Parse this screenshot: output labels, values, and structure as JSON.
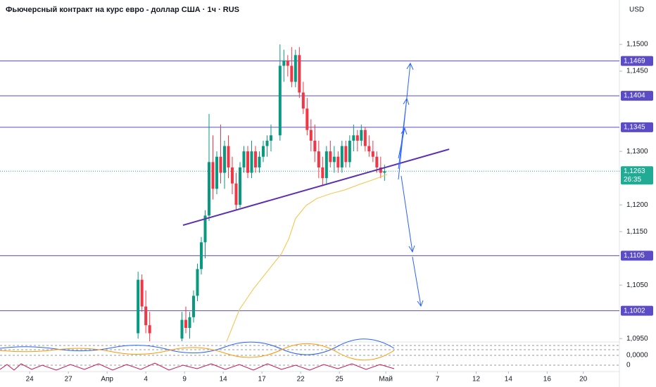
{
  "chart_data": {
    "type": "candlestick",
    "title": "Фьючерсный контракт на курс евро - доллар США · 1ч · RUS",
    "currency": "USD",
    "xlim": [
      -2.3,
      45.7
    ],
    "ylim": [
      1.0945,
      1.1583
    ],
    "xticks": [
      {
        "value": 0,
        "label": "24"
      },
      {
        "value": 3,
        "label": "27"
      },
      {
        "value": 6,
        "label": "Апр"
      },
      {
        "value": 9,
        "label": "4"
      },
      {
        "value": 12,
        "label": "9"
      },
      {
        "value": 15,
        "label": "14"
      },
      {
        "value": 18,
        "label": "17"
      },
      {
        "value": 21,
        "label": "22"
      },
      {
        "value": 24,
        "label": "25"
      },
      {
        "value": 27.6,
        "label": "Май"
      },
      {
        "value": 31.6,
        "label": "7"
      },
      {
        "value": 34.6,
        "label": "12"
      },
      {
        "value": 37.1,
        "label": "14"
      },
      {
        "value": 40.1,
        "label": "16"
      },
      {
        "value": 42.9,
        "label": "20"
      }
    ],
    "yticks": [
      {
        "value": 1.15,
        "label": "1,1500"
      },
      {
        "value": 1.145,
        "label": "1,1450"
      },
      {
        "value": 1.13,
        "label": "1,1300"
      },
      {
        "value": 1.12,
        "label": "1,1200"
      },
      {
        "value": 1.115,
        "label": "1,1150"
      },
      {
        "value": 1.105,
        "label": "1,1050"
      },
      {
        "value": 1.095,
        "label": "1,0950"
      }
    ],
    "up_color": "#089981",
    "down_color": "#f23645",
    "x": [
      8.4,
      8.7,
      9.0,
      9.3,
      11.8,
      12.1,
      12.4,
      12.7,
      13.0,
      13.3,
      13.6,
      13.9,
      14.2,
      14.5,
      14.8,
      15.1,
      15.4,
      15.7,
      16.0,
      16.3,
      16.6,
      16.9,
      17.2,
      17.5,
      17.8,
      18.1,
      18.4,
      18.7,
      19.4,
      19.7,
      20.0,
      20.3,
      20.6,
      20.9,
      21.2,
      21.5,
      21.8,
      22.1,
      22.4,
      22.7,
      23.0,
      23.3,
      23.6,
      23.9,
      24.2,
      24.5,
      24.8,
      25.1,
      25.4,
      25.7,
      26.0,
      26.3,
      26.6,
      26.9,
      27.2,
      27.5
    ],
    "open": [
      1.096,
      1.106,
      1.101,
      1.0975,
      1.095,
      1.0985,
      1.097,
      1.099,
      1.103,
      1.108,
      1.113,
      1.118,
      1.128,
      1.123,
      1.129,
      1.126,
      1.131,
      1.127,
      1.124,
      1.12,
      1.127,
      1.13,
      1.126,
      1.13,
      1.127,
      1.129,
      1.131,
      1.132,
      1.133,
      1.146,
      1.147,
      1.146,
      1.143,
      1.148,
      1.141,
      1.138,
      1.134,
      1.132,
      1.13,
      1.127,
      1.125,
      1.13,
      1.128,
      1.129,
      1.127,
      1.131,
      1.128,
      1.132,
      1.133,
      1.132,
      1.134,
      1.131,
      1.13,
      1.129,
      1.127,
      1.126
    ],
    "high": [
      1.1075,
      1.107,
      1.104,
      1.1,
      1.1,
      1.101,
      1.1,
      1.104,
      1.109,
      1.114,
      1.119,
      1.137,
      1.133,
      1.13,
      1.135,
      1.132,
      1.133,
      1.129,
      1.126,
      1.128,
      1.131,
      1.131,
      1.132,
      1.131,
      1.13,
      1.132,
      1.133,
      1.135,
      1.15,
      1.149,
      1.148,
      1.1495,
      1.149,
      1.1495,
      1.143,
      1.14,
      1.136,
      1.135,
      1.132,
      1.129,
      1.131,
      1.132,
      1.131,
      1.13,
      1.132,
      1.132,
      1.133,
      1.135,
      1.134,
      1.135,
      1.1345,
      1.133,
      1.132,
      1.13,
      1.129,
      1.1275
    ],
    "low": [
      1.095,
      1.1,
      1.096,
      1.0945,
      1.0945,
      1.096,
      1.095,
      1.098,
      1.102,
      1.107,
      1.11,
      1.117,
      1.121,
      1.122,
      1.124,
      1.123,
      1.125,
      1.122,
      1.119,
      1.1195,
      1.126,
      1.125,
      1.125,
      1.126,
      1.126,
      1.128,
      1.129,
      1.13,
      1.132,
      1.143,
      1.144,
      1.142,
      1.142,
      1.14,
      1.137,
      1.133,
      1.13,
      1.128,
      1.125,
      1.1235,
      1.124,
      1.127,
      1.126,
      1.126,
      1.126,
      1.127,
      1.127,
      1.13,
      1.13,
      1.131,
      1.13,
      1.129,
      1.128,
      1.126,
      1.125,
      1.1245
    ],
    "close": [
      1.106,
      1.101,
      1.0975,
      1.096,
      1.0985,
      1.097,
      1.099,
      1.103,
      1.108,
      1.113,
      1.118,
      1.128,
      1.123,
      1.129,
      1.126,
      1.131,
      1.127,
      1.124,
      1.12,
      1.127,
      1.13,
      1.126,
      1.13,
      1.127,
      1.129,
      1.131,
      1.132,
      1.133,
      1.146,
      1.147,
      1.146,
      1.143,
      1.148,
      1.141,
      1.138,
      1.134,
      1.132,
      1.13,
      1.127,
      1.125,
      1.13,
      1.128,
      1.129,
      1.127,
      1.131,
      1.128,
      1.132,
      1.133,
      1.132,
      1.134,
      1.131,
      1.13,
      1.129,
      1.127,
      1.126,
      1.1263
    ],
    "moving_average": {
      "color": "#f5c242",
      "x": [
        15.27,
        16.25,
        17.34,
        18.43,
        19.52,
        20.07,
        20.61,
        21.43,
        22.25,
        23.34,
        24.43,
        25.52,
        26.61,
        27.71
      ],
      "values": [
        1.0945,
        1.1004,
        1.1043,
        1.1076,
        1.1109,
        1.1136,
        1.1175,
        1.1199,
        1.1212,
        1.1221,
        1.1228,
        1.1238,
        1.1247,
        1.1257
      ]
    },
    "trendline": {
      "color": "#5b2fb3",
      "x": [
        11.88,
        32.51
      ],
      "values": [
        1.1162,
        1.1304
      ]
    },
    "level_color": "#5b4bc4",
    "levels": [
      {
        "value": 1.1469,
        "label": "1,1469"
      },
      {
        "value": 1.1404,
        "label": "1,1404"
      },
      {
        "value": 1.1345,
        "label": "1,1345"
      },
      {
        "value": 1.1105,
        "label": "1,1105"
      },
      {
        "value": 1.1002,
        "label": "1,1002"
      }
    ],
    "last_price": {
      "value": 1.1263,
      "label": "1,1263",
      "color": "#22ab94"
    },
    "countdown": "26:35",
    "indicator_labels": [
      "0,0000",
      "0"
    ]
  }
}
